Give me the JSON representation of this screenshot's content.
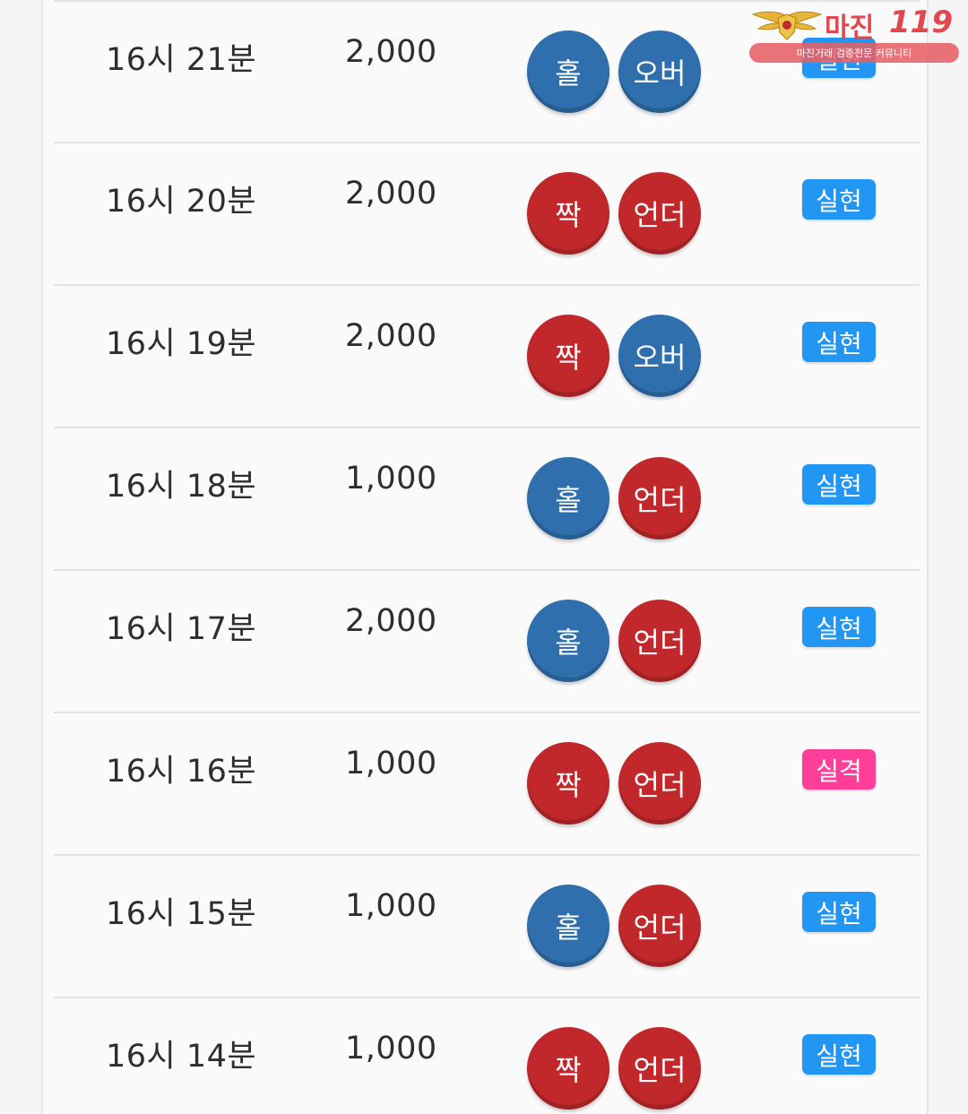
{
  "colors": {
    "blue_ball": "#2f6fad",
    "red_ball": "#c0282c",
    "badge_success": "#2196f3",
    "badge_fail": "#ff3e9a",
    "text": "#2e2e2e"
  },
  "watermark": {
    "title": "마진",
    "number": "119",
    "subtitle": "마진거래 검증전문 커뮤니티",
    "emblem": "wings-shield-emblem"
  },
  "rows": [
    {
      "time": "16시 21분",
      "amount": "2,000",
      "pick1": {
        "label": "홀",
        "color": "blue"
      },
      "pick2": {
        "label": "오버",
        "color": "blue"
      },
      "result": {
        "label": "실현",
        "color": "blue"
      }
    },
    {
      "time": "16시 20분",
      "amount": "2,000",
      "pick1": {
        "label": "짝",
        "color": "red"
      },
      "pick2": {
        "label": "언더",
        "color": "red"
      },
      "result": {
        "label": "실현",
        "color": "blue"
      }
    },
    {
      "time": "16시 19분",
      "amount": "2,000",
      "pick1": {
        "label": "짝",
        "color": "red"
      },
      "pick2": {
        "label": "오버",
        "color": "blue"
      },
      "result": {
        "label": "실현",
        "color": "blue"
      }
    },
    {
      "time": "16시 18분",
      "amount": "1,000",
      "pick1": {
        "label": "홀",
        "color": "blue"
      },
      "pick2": {
        "label": "언더",
        "color": "red"
      },
      "result": {
        "label": "실현",
        "color": "blue"
      }
    },
    {
      "time": "16시 17분",
      "amount": "2,000",
      "pick1": {
        "label": "홀",
        "color": "blue"
      },
      "pick2": {
        "label": "언더",
        "color": "red"
      },
      "result": {
        "label": "실현",
        "color": "blue"
      }
    },
    {
      "time": "16시 16분",
      "amount": "1,000",
      "pick1": {
        "label": "짝",
        "color": "red"
      },
      "pick2": {
        "label": "언더",
        "color": "red"
      },
      "result": {
        "label": "실격",
        "color": "pink"
      }
    },
    {
      "time": "16시 15분",
      "amount": "1,000",
      "pick1": {
        "label": "홀",
        "color": "blue"
      },
      "pick2": {
        "label": "언더",
        "color": "red"
      },
      "result": {
        "label": "실현",
        "color": "blue"
      }
    },
    {
      "time": "16시 14분",
      "amount": "1,000",
      "pick1": {
        "label": "짝",
        "color": "red"
      },
      "pick2": {
        "label": "언더",
        "color": "red"
      },
      "result": {
        "label": "실현",
        "color": "blue"
      }
    }
  ]
}
